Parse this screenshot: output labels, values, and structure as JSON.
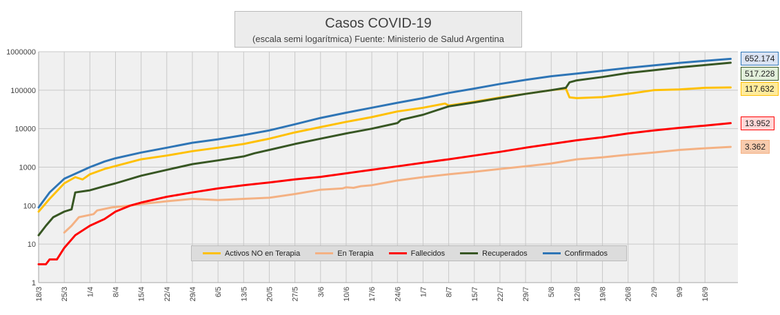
{
  "chart_data": {
    "type": "line",
    "title": "Casos COVID-19",
    "subtitle": "(escala semi logarítmica) Fuente: Ministerio de Salud Argentina",
    "yscale": "log",
    "ylim": [
      1,
      1000000
    ],
    "yticks": [
      "1",
      "10",
      "100",
      "1000",
      "10000",
      "100000",
      "1000000"
    ],
    "xlim": [
      "2020-03-18",
      "2020-09-25"
    ],
    "xticks": [
      "18/3",
      "25/3",
      "1/4",
      "8/4",
      "15/4",
      "22/4",
      "29/4",
      "6/5",
      "13/5",
      "20/5",
      "27/5",
      "3/6",
      "10/6",
      "17/6",
      "24/6",
      "1/7",
      "8/7",
      "15/7",
      "22/7",
      "29/7",
      "5/8",
      "12/8",
      "19/8",
      "26/8",
      "2/9",
      "9/9",
      "16/9"
    ],
    "grid": true,
    "legend_position": "bottom",
    "series": [
      {
        "name": "Activos NO en Terapia",
        "color": "#ffc000",
        "end_label": "117.632",
        "label_bg": "#ffeb9c",
        "points": [
          [
            "2020-03-18",
            70
          ],
          [
            "2020-03-21",
            150
          ],
          [
            "2020-03-25",
            380
          ],
          [
            "2020-03-28",
            550
          ],
          [
            "2020-03-30",
            480
          ],
          [
            "2020-04-01",
            650
          ],
          [
            "2020-04-05",
            900
          ],
          [
            "2020-04-10",
            1200
          ],
          [
            "2020-04-15",
            1600
          ],
          [
            "2020-04-22",
            2000
          ],
          [
            "2020-04-29",
            2600
          ],
          [
            "2020-05-06",
            3200
          ],
          [
            "2020-05-13",
            4000
          ],
          [
            "2020-05-20",
            5500
          ],
          [
            "2020-05-27",
            8000
          ],
          [
            "2020-06-03",
            11000
          ],
          [
            "2020-06-10",
            15000
          ],
          [
            "2020-06-17",
            20000
          ],
          [
            "2020-06-24",
            28000
          ],
          [
            "2020-07-01",
            35000
          ],
          [
            "2020-07-07",
            45000
          ],
          [
            "2020-07-08",
            40000
          ],
          [
            "2020-07-15",
            50000
          ],
          [
            "2020-07-22",
            65000
          ],
          [
            "2020-07-29",
            80000
          ],
          [
            "2020-08-05",
            100000
          ],
          [
            "2020-08-09",
            110000
          ],
          [
            "2020-08-10",
            65000
          ],
          [
            "2020-08-12",
            62000
          ],
          [
            "2020-08-19",
            66000
          ],
          [
            "2020-08-26",
            80000
          ],
          [
            "2020-09-02",
            100000
          ],
          [
            "2020-09-09",
            105000
          ],
          [
            "2020-09-16",
            115000
          ],
          [
            "2020-09-23",
            117632
          ]
        ]
      },
      {
        "name": "En Terapia",
        "color": "#f4b183",
        "end_label": "3.362",
        "label_bg": "#f8cbad",
        "points": [
          [
            "2020-03-25",
            20
          ],
          [
            "2020-03-27",
            30
          ],
          [
            "2020-03-29",
            50
          ],
          [
            "2020-04-02",
            60
          ],
          [
            "2020-04-03",
            75
          ],
          [
            "2020-04-07",
            90
          ],
          [
            "2020-04-12",
            100
          ],
          [
            "2020-04-15",
            110
          ],
          [
            "2020-04-22",
            130
          ],
          [
            "2020-04-29",
            150
          ],
          [
            "2020-05-06",
            140
          ],
          [
            "2020-05-13",
            150
          ],
          [
            "2020-05-20",
            160
          ],
          [
            "2020-05-27",
            200
          ],
          [
            "2020-06-03",
            260
          ],
          [
            "2020-06-09",
            280
          ],
          [
            "2020-06-10",
            300
          ],
          [
            "2020-06-12",
            290
          ],
          [
            "2020-06-14",
            320
          ],
          [
            "2020-06-17",
            340
          ],
          [
            "2020-06-24",
            450
          ],
          [
            "2020-07-01",
            550
          ],
          [
            "2020-07-08",
            650
          ],
          [
            "2020-07-15",
            760
          ],
          [
            "2020-07-22",
            900
          ],
          [
            "2020-07-29",
            1050
          ],
          [
            "2020-08-05",
            1250
          ],
          [
            "2020-08-12",
            1600
          ],
          [
            "2020-08-19",
            1800
          ],
          [
            "2020-08-26",
            2100
          ],
          [
            "2020-09-02",
            2400
          ],
          [
            "2020-09-09",
            2800
          ],
          [
            "2020-09-16",
            3100
          ],
          [
            "2020-09-23",
            3362
          ]
        ]
      },
      {
        "name": "Fallecidos",
        "color": "#ff0000",
        "end_label": "13.952",
        "label_bg": "#ffd7d7",
        "points": [
          [
            "2020-03-18",
            3
          ],
          [
            "2020-03-20",
            3
          ],
          [
            "2020-03-21",
            4
          ],
          [
            "2020-03-23",
            4
          ],
          [
            "2020-03-25",
            8
          ],
          [
            "2020-03-28",
            17
          ],
          [
            "2020-04-01",
            30
          ],
          [
            "2020-04-05",
            45
          ],
          [
            "2020-04-08",
            70
          ],
          [
            "2020-04-12",
            100
          ],
          [
            "2020-04-15",
            120
          ],
          [
            "2020-04-22",
            170
          ],
          [
            "2020-04-29",
            220
          ],
          [
            "2020-05-06",
            280
          ],
          [
            "2020-05-13",
            340
          ],
          [
            "2020-05-20",
            400
          ],
          [
            "2020-05-27",
            480
          ],
          [
            "2020-06-03",
            560
          ],
          [
            "2020-06-10",
            690
          ],
          [
            "2020-06-17",
            850
          ],
          [
            "2020-06-24",
            1050
          ],
          [
            "2020-07-01",
            1300
          ],
          [
            "2020-07-08",
            1600
          ],
          [
            "2020-07-15",
            2000
          ],
          [
            "2020-07-22",
            2500
          ],
          [
            "2020-07-29",
            3200
          ],
          [
            "2020-08-05",
            4000
          ],
          [
            "2020-08-12",
            5000
          ],
          [
            "2020-08-19",
            6000
          ],
          [
            "2020-08-26",
            7500
          ],
          [
            "2020-09-02",
            9000
          ],
          [
            "2020-09-09",
            10500
          ],
          [
            "2020-09-16",
            12000
          ],
          [
            "2020-09-23",
            13952
          ]
        ]
      },
      {
        "name": "Recuperados",
        "color": "#375623",
        "end_label": "517.228",
        "label_bg": "#e2efda",
        "points": [
          [
            "2020-03-18",
            17
          ],
          [
            "2020-03-20",
            30
          ],
          [
            "2020-03-22",
            50
          ],
          [
            "2020-03-25",
            70
          ],
          [
            "2020-03-27",
            80
          ],
          [
            "2020-03-28",
            220
          ],
          [
            "2020-04-01",
            250
          ],
          [
            "2020-04-05",
            320
          ],
          [
            "2020-04-08",
            380
          ],
          [
            "2020-04-15",
            600
          ],
          [
            "2020-04-22",
            850
          ],
          [
            "2020-04-29",
            1200
          ],
          [
            "2020-05-06",
            1500
          ],
          [
            "2020-05-13",
            1900
          ],
          [
            "2020-05-16",
            2300
          ],
          [
            "2020-05-20",
            2800
          ],
          [
            "2020-05-27",
            4000
          ],
          [
            "2020-06-03",
            5500
          ],
          [
            "2020-06-10",
            7500
          ],
          [
            "2020-06-17",
            10000
          ],
          [
            "2020-06-24",
            14000
          ],
          [
            "2020-06-25",
            17000
          ],
          [
            "2020-07-01",
            23000
          ],
          [
            "2020-07-08",
            38000
          ],
          [
            "2020-07-15",
            48000
          ],
          [
            "2020-07-22",
            62000
          ],
          [
            "2020-07-29",
            80000
          ],
          [
            "2020-08-05",
            100000
          ],
          [
            "2020-08-09",
            115000
          ],
          [
            "2020-08-10",
            160000
          ],
          [
            "2020-08-12",
            180000
          ],
          [
            "2020-08-19",
            220000
          ],
          [
            "2020-08-26",
            280000
          ],
          [
            "2020-09-02",
            330000
          ],
          [
            "2020-09-09",
            390000
          ],
          [
            "2020-09-16",
            450000
          ],
          [
            "2020-09-23",
            517228
          ]
        ]
      },
      {
        "name": "Confirmados",
        "color": "#2e75b6",
        "end_label": "652.174",
        "label_bg": "#dae3f3",
        "points": [
          [
            "2020-03-18",
            90
          ],
          [
            "2020-03-21",
            220
          ],
          [
            "2020-03-25",
            500
          ],
          [
            "2020-04-01",
            1000
          ],
          [
            "2020-04-05",
            1400
          ],
          [
            "2020-04-08",
            1700
          ],
          [
            "2020-04-15",
            2400
          ],
          [
            "2020-04-22",
            3200
          ],
          [
            "2020-04-29",
            4300
          ],
          [
            "2020-05-06",
            5300
          ],
          [
            "2020-05-13",
            6800
          ],
          [
            "2020-05-20",
            9000
          ],
          [
            "2020-05-27",
            13000
          ],
          [
            "2020-06-03",
            19000
          ],
          [
            "2020-06-10",
            26000
          ],
          [
            "2020-06-17",
            35000
          ],
          [
            "2020-06-24",
            47000
          ],
          [
            "2020-07-01",
            62000
          ],
          [
            "2020-07-08",
            85000
          ],
          [
            "2020-07-15",
            110000
          ],
          [
            "2020-07-22",
            145000
          ],
          [
            "2020-07-29",
            185000
          ],
          [
            "2020-08-05",
            230000
          ],
          [
            "2020-08-12",
            270000
          ],
          [
            "2020-08-19",
            320000
          ],
          [
            "2020-08-26",
            380000
          ],
          [
            "2020-09-02",
            440000
          ],
          [
            "2020-09-09",
            510000
          ],
          [
            "2020-09-16",
            580000
          ],
          [
            "2020-09-23",
            652174
          ]
        ]
      }
    ]
  }
}
